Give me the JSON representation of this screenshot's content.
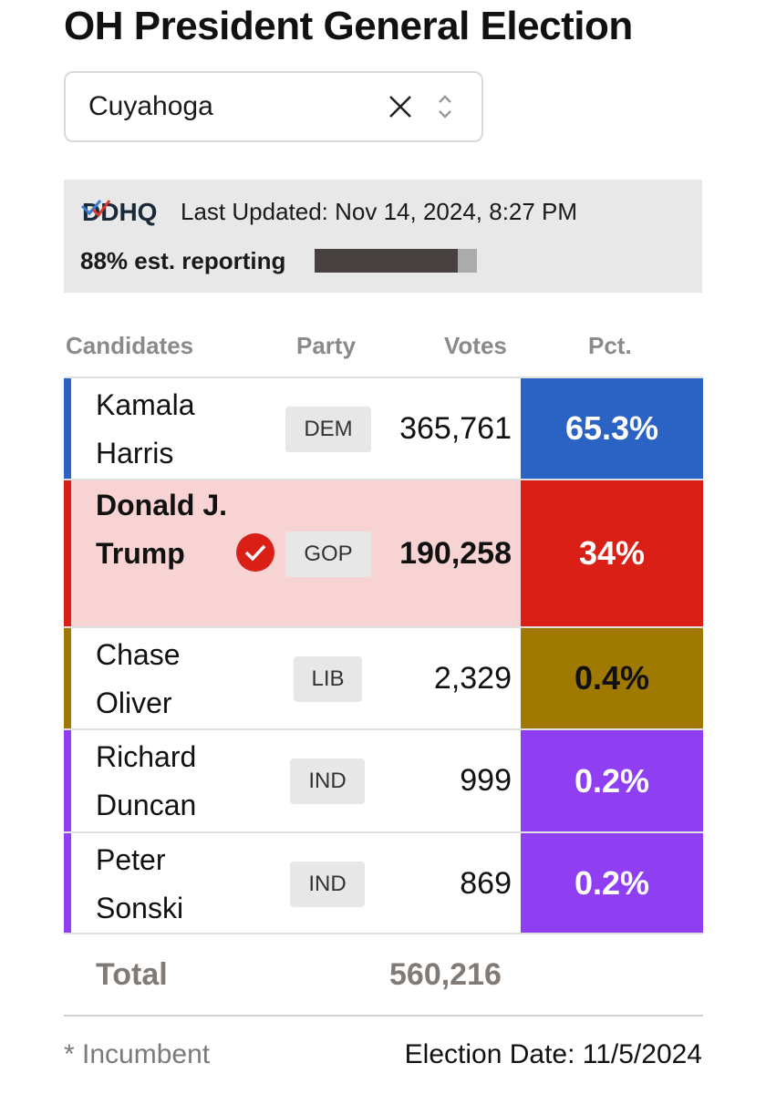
{
  "title": "OH President General Election",
  "county_select": {
    "value": "Cuyahoga"
  },
  "status": {
    "logo_text": "DDHQ",
    "last_updated": "Last Updated: Nov 14, 2024, 8:27 PM",
    "reporting_label": "88% est. reporting",
    "reporting_fraction": 0.88
  },
  "table": {
    "headers": {
      "candidates": "Candidates",
      "party": "Party",
      "votes": "Votes",
      "pct": "Pct."
    },
    "rows": [
      {
        "name": "Kamala Harris",
        "party": "DEM",
        "votes": "365,761",
        "pct": "65.3%",
        "winner": false,
        "color": "#2a63c4",
        "pct_text_color": "#ffffff"
      },
      {
        "name": "Donald J. Trump",
        "party": "GOP",
        "votes": "190,258",
        "pct": "34%",
        "winner": true,
        "color": "#d91f16",
        "pct_text_color": "#ffffff"
      },
      {
        "name": "Chase Oliver",
        "party": "LIB",
        "votes": "2,329",
        "pct": "0.4%",
        "winner": false,
        "color": "#a07a00",
        "pct_text_color": "#111111"
      },
      {
        "name": "Richard Duncan",
        "party": "IND",
        "votes": "999",
        "pct": "0.2%",
        "winner": false,
        "color": "#8f3ef2",
        "pct_text_color": "#ffffff"
      },
      {
        "name": "Peter Sonski",
        "party": "IND",
        "votes": "869",
        "pct": "0.2%",
        "winner": false,
        "color": "#8f3ef2",
        "pct_text_color": "#ffffff"
      }
    ]
  },
  "total": {
    "label": "Total",
    "value": "560,216"
  },
  "footer": {
    "incumbent_note": "* Incumbent",
    "election_date": "Election Date: 11/5/2024"
  },
  "colors": {
    "winner_row_bg": "#f7d3d3",
    "check_badge": "#d91f16"
  }
}
